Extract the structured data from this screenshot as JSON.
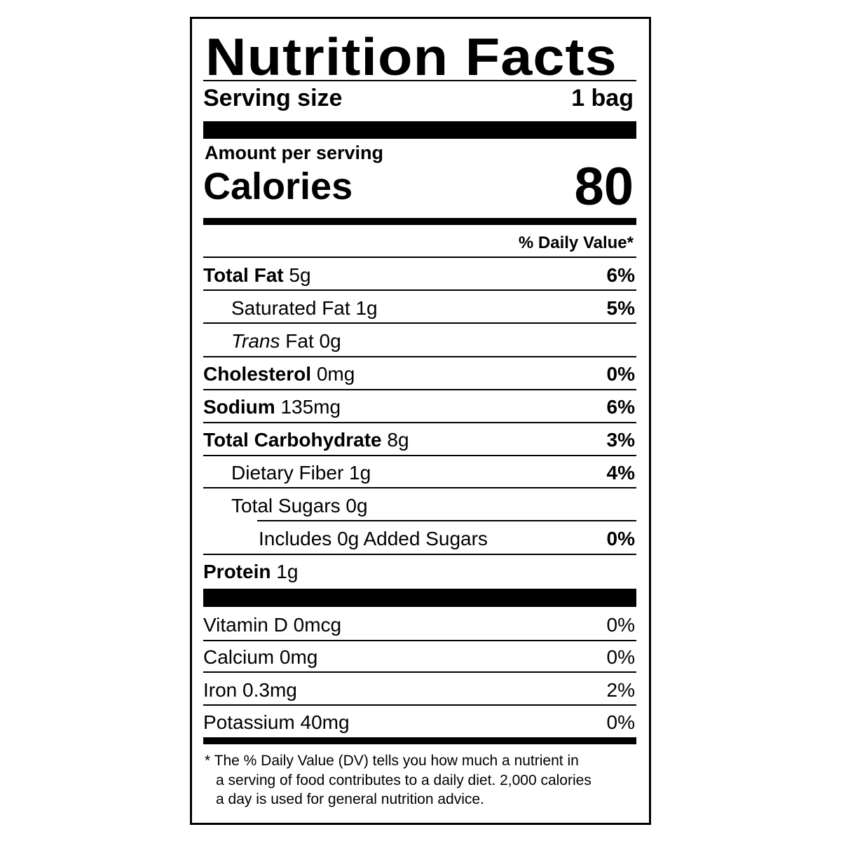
{
  "title": "Nutrition Facts",
  "serving": {
    "label": "Serving size",
    "value": "1 bag"
  },
  "amount_per_serving": "Amount per serving",
  "calories": {
    "label": "Calories",
    "value": "80"
  },
  "dv_header": "% Daily Value*",
  "nutrients": [
    {
      "name": "Total Fat",
      "amount": "5g",
      "dv": "6%"
    },
    {
      "name": "Saturated Fat",
      "amount": "1g",
      "dv": "5%"
    },
    {
      "name_italic": "Trans",
      "name": "Fat",
      "amount": "0g",
      "dv": ""
    },
    {
      "name": "Cholesterol",
      "amount": "0mg",
      "dv": "0%"
    },
    {
      "name": "Sodium",
      "amount": "135mg",
      "dv": "6%"
    },
    {
      "name": "Total Carbohydrate",
      "amount": "8g",
      "dv": "3%"
    },
    {
      "name": "Dietary Fiber",
      "amount": "1g",
      "dv": "4%"
    },
    {
      "name": "Total Sugars",
      "amount": "0g",
      "dv": ""
    },
    {
      "name": "Includes 0g Added Sugars",
      "amount": "",
      "dv": "0%"
    },
    {
      "name": "Protein",
      "amount": "1g",
      "dv": ""
    }
  ],
  "vitamins": [
    {
      "name": "Vitamin D 0mcg",
      "dv": "0%"
    },
    {
      "name": "Calcium 0mg",
      "dv": "0%"
    },
    {
      "name": "Iron 0.3mg",
      "dv": "2%"
    },
    {
      "name": "Potassium 40mg",
      "dv": "0%"
    }
  ],
  "footnote": [
    "* The % Daily Value (DV) tells you how much a nutrient in",
    "a serving of food contributes to a daily diet. 2,000 calories",
    "a day is used for general nutrition advice."
  ]
}
